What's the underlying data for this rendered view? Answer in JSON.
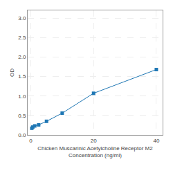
{
  "chart_data": {
    "type": "line",
    "x": [
      0.3125,
      0.625,
      1.25,
      2.5,
      5,
      10,
      20,
      40
    ],
    "values": [
      0.172,
      0.202,
      0.232,
      0.259,
      0.35,
      0.56,
      1.07,
      1.68
    ],
    "xlabel": "Chicken Muscarinic Acetylcholine Receptor M2\nConcentration (ng/ml)",
    "ylabel": "OD",
    "xlim": [
      -1,
      42
    ],
    "ylim": [
      0,
      3.2
    ],
    "xticks": [
      0,
      20,
      40
    ],
    "yticks": [
      {
        "value": 0,
        "label": "0.0"
      },
      0.5,
      {
        "value": 1.0,
        "label": "1.0"
      },
      1.5,
      {
        "value": 2.0,
        "label": "2.0"
      },
      2.5,
      {
        "value": 3.0,
        "label": "3.0"
      }
    ],
    "grid": true,
    "marker": "square"
  }
}
